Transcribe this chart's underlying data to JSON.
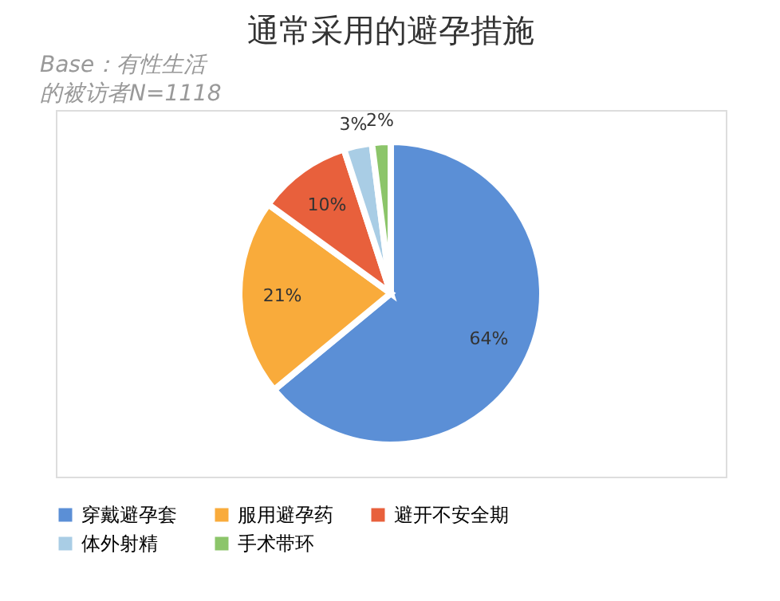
{
  "chart_data": {
    "type": "pie",
    "title": "通常采用的避孕措施",
    "categories": [
      "穿戴避孕套",
      "服用避孕药",
      "避开不安全期",
      "体外射精",
      "手术带环"
    ],
    "values": [
      64,
      21,
      10,
      3,
      2
    ],
    "value_labels": [
      "64%",
      "21%",
      "10%",
      "3%",
      "2%"
    ],
    "colors": [
      "#5b8fd6",
      "#f9ab3b",
      "#e8603c",
      "#a9cde5",
      "#8cc56a"
    ],
    "legend": "bottom",
    "annotations": [
      "Base：有性生活",
      "的被访者N=1118"
    ]
  }
}
